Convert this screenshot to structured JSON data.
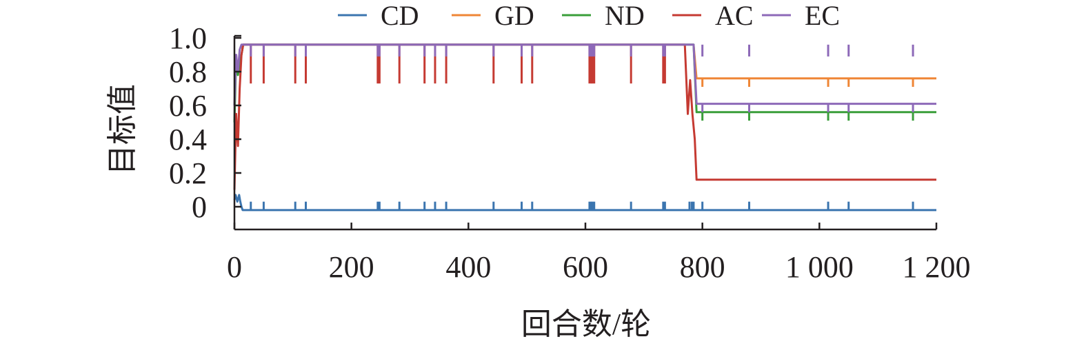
{
  "chart_data": {
    "type": "line",
    "xlabel": "回合数/轮",
    "ylabel": "目标值",
    "xlim": [
      0,
      1200
    ],
    "ylim": [
      -0.05,
      1.0
    ],
    "x_ticks": [
      0,
      200,
      400,
      600,
      800,
      1000,
      1200
    ],
    "x_tick_labels": [
      "0",
      "200",
      "400",
      "600",
      "800",
      "1 000",
      "1 200"
    ],
    "y_ticks": [
      0,
      0.2,
      0.4,
      0.6,
      0.8,
      1.0
    ],
    "y_tick_labels": [
      "0",
      "0.2",
      "0.4",
      "0.6",
      "0.8",
      "1.0"
    ],
    "grid": false,
    "legend_position": "top",
    "series": [
      {
        "name": "CD",
        "color": "#3b75af",
        "segments": [
          {
            "x": [
              0,
              2,
              5,
              8,
              10,
              12,
              14,
              800,
              1200
            ],
            "y": [
              0.04,
              0.07,
              0.03,
              0.07,
              0.03,
              0.0,
              -0.02,
              -0.02,
              -0.02
            ]
          }
        ],
        "spikes": {
          "base": -0.02,
          "peak": 0.03,
          "x": [
            28,
            50,
            104,
            122,
            245,
            248,
            282,
            325,
            343,
            362,
            443,
            491,
            509,
            607,
            610,
            612,
            615,
            678,
            733,
            736,
            778,
            782,
            785,
            800,
            880,
            1015,
            1050,
            1160
          ]
        }
      },
      {
        "name": "GD",
        "color": "#ef8636",
        "segments": [
          {
            "x": [
              785,
              790,
              1200
            ],
            "y": [
              0.96,
              0.76,
              0.76
            ]
          }
        ],
        "spikes": {
          "base": 0.76,
          "peak": 0.71,
          "x": [
            800,
            880,
            1015,
            1050,
            1160
          ]
        }
      },
      {
        "name": "ND",
        "color": "#3a9e3a",
        "segments": [
          {
            "x": [
              0,
              3,
              6,
              9,
              12,
              15,
              785,
              790,
              1200
            ],
            "y": [
              0.5,
              0.88,
              0.78,
              0.85,
              0.9,
              0.96,
              0.96,
              0.56,
              0.56
            ]
          }
        ],
        "spikes": {
          "base": 0.56,
          "peak": 0.51,
          "x": [
            800,
            880,
            1015,
            1050,
            1160
          ]
        }
      },
      {
        "name": "AC",
        "color": "#c53a32",
        "segments": [
          {
            "x": [
              0,
              3,
              6,
              9,
              12,
              15,
              770,
              775,
              779,
              783,
              787,
              790,
              1200
            ],
            "y": [
              0.1,
              0.55,
              0.36,
              0.7,
              0.9,
              0.96,
              0.96,
              0.55,
              0.75,
              0.55,
              0.4,
              0.16,
              0.16
            ]
          }
        ],
        "spikes": {
          "base": 0.96,
          "peak": 0.73,
          "x": [
            28,
            50,
            104,
            122,
            245,
            248,
            282,
            325,
            343,
            362,
            443,
            491,
            509,
            607,
            610,
            612,
            615,
            678,
            733,
            736
          ]
        }
      },
      {
        "name": "EC",
        "color": "#8d69b8",
        "segments": [
          {
            "x": [
              0,
              3,
              6,
              9,
              12,
              15,
              785,
              790,
              1200
            ],
            "y": [
              0.6,
              0.9,
              0.8,
              0.93,
              0.96,
              0.96,
              0.96,
              0.61,
              0.61
            ]
          }
        ],
        "spikes": {
          "base": 0.96,
          "peak": 0.89,
          "x": [
            28,
            50,
            104,
            122,
            245,
            248,
            282,
            325,
            343,
            362,
            443,
            491,
            509,
            607,
            610,
            612,
            615,
            678,
            733,
            736,
            800,
            880,
            1015,
            1050,
            1160
          ]
        },
        "spikes_after_drop": {
          "base": 0.61,
          "peak": 0.56,
          "x": [
            800,
            880,
            1015,
            1050,
            1160
          ]
        }
      }
    ]
  }
}
